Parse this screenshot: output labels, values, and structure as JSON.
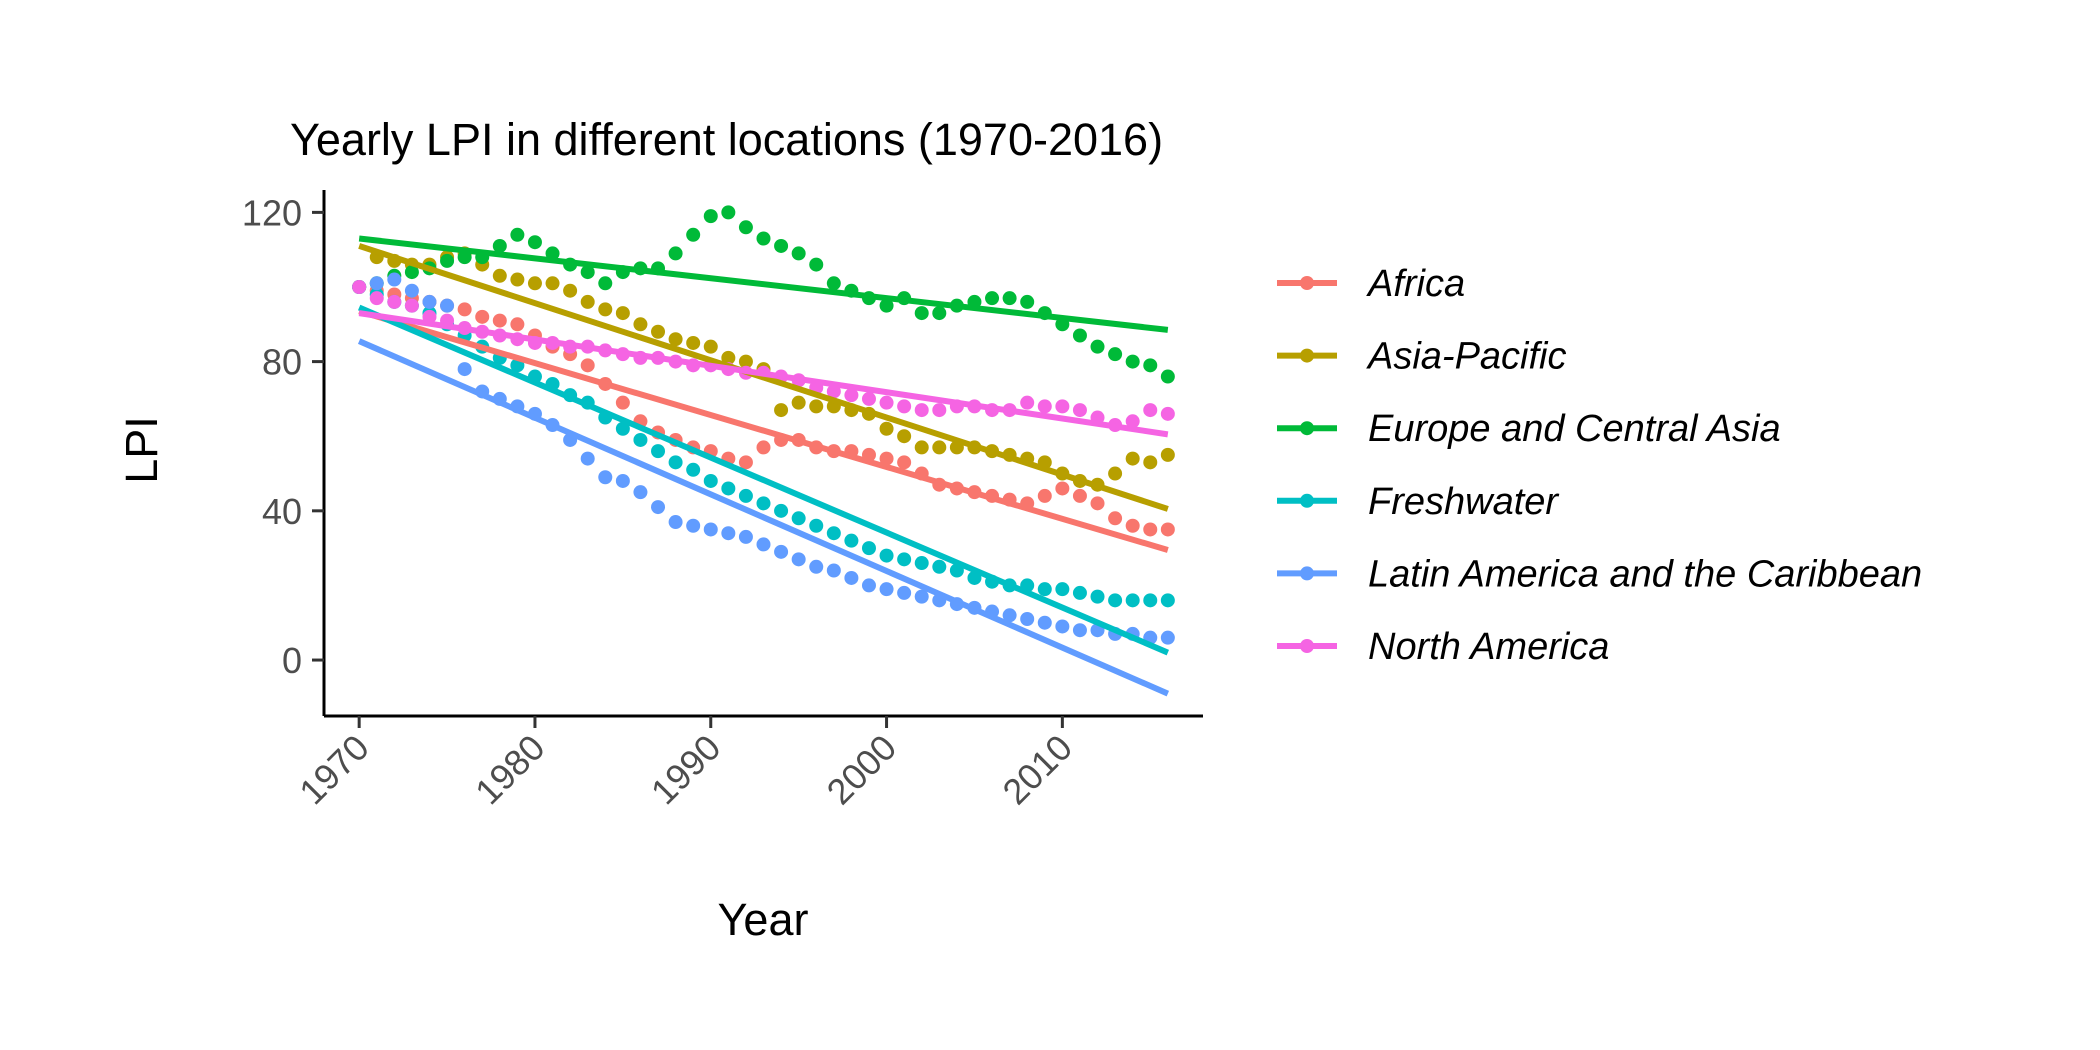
{
  "chart_data": {
    "type": "scatter",
    "title": "Yearly LPI in different locations (1970-2016)",
    "xlabel": "Year",
    "ylabel": "LPI",
    "xlim": [
      1968,
      2018
    ],
    "ylim": [
      -15,
      126
    ],
    "x_ticks": [
      1970,
      1980,
      1990,
      2000,
      2010
    ],
    "y_ticks": [
      0,
      40,
      80,
      120
    ],
    "grid": false,
    "legend_position": "right",
    "x": [
      1970,
      1971,
      1972,
      1973,
      1974,
      1975,
      1976,
      1977,
      1978,
      1979,
      1980,
      1981,
      1982,
      1983,
      1984,
      1985,
      1986,
      1987,
      1988,
      1989,
      1990,
      1991,
      1992,
      1993,
      1994,
      1995,
      1996,
      1997,
      1998,
      1999,
      2000,
      2001,
      2002,
      2003,
      2004,
      2005,
      2006,
      2007,
      2008,
      2009,
      2010,
      2011,
      2012,
      2013,
      2014,
      2015,
      2016
    ],
    "series": [
      {
        "name": "Africa",
        "color": "#F8766D",
        "values": [
          100,
          99,
          98,
          97,
          96,
          95,
          94,
          92,
          91,
          90,
          87,
          84,
          82,
          79,
          74,
          69,
          64,
          61,
          59,
          57,
          56,
          54,
          53,
          57,
          59,
          59,
          57,
          56,
          56,
          55,
          54,
          53,
          50,
          47,
          46,
          45,
          44,
          43,
          42,
          44,
          46,
          44,
          42,
          38,
          36,
          35,
          35
        ],
        "trend": [
          93.5,
          29.5
        ]
      },
      {
        "name": "Asia-Pacific",
        "color": "#B79F00",
        "values": [
          100,
          108,
          107,
          106,
          106,
          108,
          109,
          106,
          103,
          102,
          101,
          101,
          99,
          96,
          94,
          93,
          90,
          88,
          86,
          85,
          84,
          81,
          80,
          78,
          67,
          69,
          68,
          68,
          67,
          66,
          62,
          60,
          57,
          57,
          57,
          57,
          56,
          55,
          54,
          53,
          50,
          48,
          47,
          50,
          54,
          53,
          55
        ],
        "trend": [
          111,
          40.5
        ]
      },
      {
        "name": "Europe and Central Asia",
        "color": "#00BA38",
        "values": [
          100,
          101,
          103,
          104,
          105,
          107,
          108,
          108,
          111,
          114,
          112,
          109,
          106,
          104,
          101,
          104,
          105,
          105,
          109,
          114,
          119,
          120,
          116,
          113,
          111,
          109,
          106,
          101,
          99,
          97,
          95,
          97,
          93,
          93,
          95,
          96,
          97,
          97,
          96,
          93,
          90,
          87,
          84,
          82,
          80,
          79,
          76
        ],
        "trend": [
          113,
          88.5
        ]
      },
      {
        "name": "Freshwater",
        "color": "#00BFC4",
        "values": [
          100,
          98,
          96,
          95,
          93,
          90,
          87,
          84,
          81,
          79,
          76,
          74,
          71,
          69,
          65,
          62,
          59,
          56,
          53,
          51,
          48,
          46,
          44,
          42,
          40,
          38,
          36,
          34,
          32,
          30,
          28,
          27,
          26,
          25,
          24,
          22,
          21,
          20,
          20,
          19,
          19,
          18,
          17,
          16,
          16,
          16,
          16
        ],
        "trend": [
          94.5,
          2
        ]
      },
      {
        "name": "Latin America and the Caribbean",
        "color": "#619CFF",
        "values": [
          100,
          101,
          102,
          99,
          96,
          95,
          78,
          72,
          70,
          68,
          66,
          63,
          59,
          54,
          49,
          48,
          45,
          41,
          37,
          36,
          35,
          34,
          33,
          31,
          29,
          27,
          25,
          24,
          22,
          20,
          19,
          18,
          17,
          16,
          15,
          14,
          13,
          12,
          11,
          10,
          9,
          8,
          8,
          7,
          7,
          6,
          6
        ],
        "trend": [
          85.5,
          -9
        ]
      },
      {
        "name": "North America",
        "color": "#F564E3",
        "values": [
          100,
          97,
          96,
          95,
          92,
          91,
          89,
          88,
          87,
          86,
          85,
          85,
          84,
          84,
          83,
          82,
          81,
          81,
          80,
          79,
          79,
          78,
          77,
          77,
          76,
          75,
          73,
          72,
          71,
          70,
          69,
          68,
          67,
          67,
          68,
          68,
          67,
          67,
          69,
          68,
          68,
          67,
          65,
          63,
          64,
          67,
          66
        ],
        "trend": [
          93,
          60.5
        ]
      }
    ]
  }
}
